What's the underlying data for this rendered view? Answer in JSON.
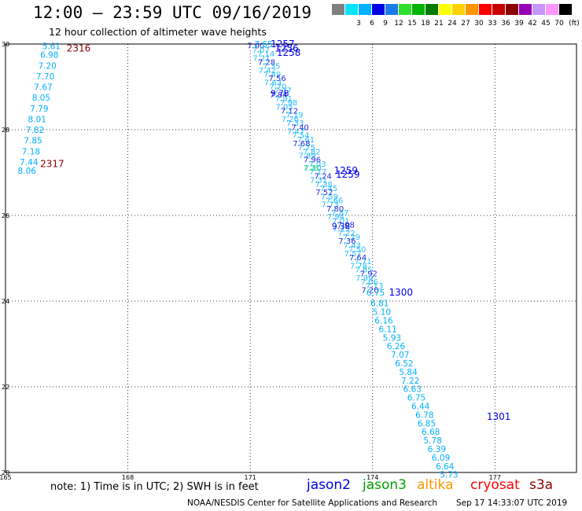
{
  "header": {
    "title": "12:00 — 23:59 UTC 09/16/2019",
    "subtitle": "12 hour collection of altimeter wave heights"
  },
  "colorbar": {
    "unit": "(ft)",
    "bins": [
      {
        "color": "#808080",
        "label": ""
      },
      {
        "color": "#00e5ff",
        "label": "3"
      },
      {
        "color": "#00b2ff",
        "label": "6"
      },
      {
        "color": "#0000e6",
        "label": "9"
      },
      {
        "color": "#1c7be6",
        "label": "12"
      },
      {
        "color": "#2ce02c",
        "label": "15"
      },
      {
        "color": "#00b400",
        "label": "18"
      },
      {
        "color": "#007a00",
        "label": "21"
      },
      {
        "color": "#ffff00",
        "label": "24"
      },
      {
        "color": "#ffd200",
        "label": "27"
      },
      {
        "color": "#ff9600",
        "label": "30"
      },
      {
        "color": "#ff0000",
        "label": "33"
      },
      {
        "color": "#c80000",
        "label": "36"
      },
      {
        "color": "#8b0000",
        "label": "39"
      },
      {
        "color": "#9600b4",
        "label": "42"
      },
      {
        "color": "#c896ff",
        "label": "45"
      },
      {
        "color": "#ff96ff",
        "label": "70"
      },
      {
        "color": "#000000",
        "label": ""
      }
    ]
  },
  "map": {
    "lon_range": [
      165,
      179
    ],
    "lat_range": [
      20,
      30
    ],
    "lon_ticks": [
      "165",
      "168",
      "171",
      "174",
      "177"
    ],
    "lat_ticks": [
      "30",
      "28",
      "26",
      "24",
      "22",
      "20"
    ],
    "grid": "dotted",
    "track_labels": [
      {
        "text": "2316",
        "lon": 166.5,
        "lat": 29.9,
        "color": "#8b0000"
      },
      {
        "text": "2317",
        "lon": 165.85,
        "lat": 27.2,
        "color": "#8b0000"
      },
      {
        "text": "1257",
        "lon": 171.5,
        "lat": 30.0,
        "color": "#0000e6"
      },
      {
        "text": "1256",
        "lon": 171.6,
        "lat": 29.9,
        "color": "#0000e6"
      },
      {
        "text": "1258",
        "lon": 171.65,
        "lat": 29.8,
        "color": "#0000e6"
      },
      {
        "text": "1259",
        "lon": 173.05,
        "lat": 27.05,
        "color": "#0000e6"
      },
      {
        "text": "1259",
        "lon": 173.1,
        "lat": 26.95,
        "color": "#0000e6"
      },
      {
        "text": "1300",
        "lon": 174.4,
        "lat": 24.2,
        "color": "#0000e6"
      },
      {
        "text": "1301",
        "lon": 176.8,
        "lat": 21.3,
        "color": "#0000e6"
      }
    ],
    "swh_labels": [
      {
        "text": "5.61",
        "lon": 165.9,
        "lat": 29.95,
        "color": "#00b2ff"
      },
      {
        "text": "6.98",
        "lon": 165.85,
        "lat": 29.75,
        "color": "#00b2ff"
      },
      {
        "text": "7.20",
        "lon": 165.8,
        "lat": 29.5,
        "color": "#00b2ff"
      },
      {
        "text": "7.70",
        "lon": 165.75,
        "lat": 29.25,
        "color": "#00b2ff"
      },
      {
        "text": "7.67",
        "lon": 165.7,
        "lat": 29.0,
        "color": "#00b2ff"
      },
      {
        "text": "8.05",
        "lon": 165.65,
        "lat": 28.75,
        "color": "#00b2ff"
      },
      {
        "text": "7.79",
        "lon": 165.6,
        "lat": 28.5,
        "color": "#00b2ff"
      },
      {
        "text": "8.01",
        "lon": 165.55,
        "lat": 28.25,
        "color": "#00b2ff"
      },
      {
        "text": "7.82",
        "lon": 165.5,
        "lat": 28.0,
        "color": "#00b2ff"
      },
      {
        "text": "7.85",
        "lon": 165.45,
        "lat": 27.75,
        "color": "#00b2ff"
      },
      {
        "text": "7.18",
        "lon": 165.4,
        "lat": 27.5,
        "color": "#00b2ff"
      },
      {
        "text": "7.44",
        "lon": 165.35,
        "lat": 27.25,
        "color": "#00b2ff"
      },
      {
        "text": "8.06",
        "lon": 165.3,
        "lat": 27.05,
        "color": "#00b2ff"
      },
      {
        "text": "7.65",
        "lon": 171.1,
        "lat": 30.0,
        "color": "#00b2ff"
      },
      {
        "text": "9.78",
        "lon": 171.5,
        "lat": 28.85,
        "color": "#0000e6"
      },
      {
        "text": "9.38",
        "lon": 173.0,
        "lat": 25.75,
        "color": "#0000e6"
      },
      {
        "text": "6.75",
        "lon": 173.85,
        "lat": 24.2,
        "color": "#00b2ff"
      },
      {
        "text": "6.81",
        "lon": 173.95,
        "lat": 23.95,
        "color": "#00b2ff"
      },
      {
        "text": "5.10",
        "lon": 174.0,
        "lat": 23.75,
        "color": "#00b2ff"
      },
      {
        "text": "6.16",
        "lon": 174.05,
        "lat": 23.55,
        "color": "#00b2ff"
      },
      {
        "text": "6.11",
        "lon": 174.15,
        "lat": 23.35,
        "color": "#00b2ff"
      },
      {
        "text": "5.93",
        "lon": 174.25,
        "lat": 23.15,
        "color": "#00b2ff"
      },
      {
        "text": "6.26",
        "lon": 174.35,
        "lat": 22.95,
        "color": "#00b2ff"
      },
      {
        "text": "7.07",
        "lon": 174.45,
        "lat": 22.75,
        "color": "#00b2ff"
      },
      {
        "text": "6.52",
        "lon": 174.55,
        "lat": 22.55,
        "color": "#00b2ff"
      },
      {
        "text": "5.84",
        "lon": 174.65,
        "lat": 22.35,
        "color": "#00b2ff"
      },
      {
        "text": "7.22",
        "lon": 174.7,
        "lat": 22.15,
        "color": "#00b2ff"
      },
      {
        "text": "6.63",
        "lon": 174.75,
        "lat": 21.95,
        "color": "#00b2ff"
      },
      {
        "text": "6.75",
        "lon": 174.85,
        "lat": 21.75,
        "color": "#00b2ff"
      },
      {
        "text": "6.44",
        "lon": 174.95,
        "lat": 21.55,
        "color": "#00b2ff"
      },
      {
        "text": "6.78",
        "lon": 175.05,
        "lat": 21.35,
        "color": "#00b2ff"
      },
      {
        "text": "6.85",
        "lon": 175.1,
        "lat": 21.15,
        "color": "#00b2ff"
      },
      {
        "text": "6.68",
        "lon": 175.2,
        "lat": 20.95,
        "color": "#00b2ff"
      },
      {
        "text": "5.78",
        "lon": 175.25,
        "lat": 20.75,
        "color": "#00b2ff"
      },
      {
        "text": "6.39",
        "lon": 175.35,
        "lat": 20.55,
        "color": "#00b2ff"
      },
      {
        "text": "6.09",
        "lon": 175.45,
        "lat": 20.35,
        "color": "#00b2ff"
      },
      {
        "text": "6.64",
        "lon": 175.55,
        "lat": 20.15,
        "color": "#00b2ff"
      },
      {
        "text": "5.73",
        "lon": 175.65,
        "lat": 19.95,
        "color": "#00b2ff"
      }
    ]
  },
  "legend": {
    "note": "note: 1) Time is in UTC; 2) SWH is in feet",
    "satellites": [
      {
        "name": "jason2",
        "color": "#0000e6"
      },
      {
        "name": "jason3",
        "color": "#00a000"
      },
      {
        "name": "altika",
        "color": "#ff9600"
      },
      {
        "name": "cryosat",
        "color": "#ff0000"
      },
      {
        "name": "s3a",
        "color": "#8b0000"
      }
    ]
  },
  "footer": {
    "credit": "NOAA/NESDIS Center for Satellite Applications and Research",
    "timestamp": "Sep 17 14:33:07 UTC 2019"
  }
}
